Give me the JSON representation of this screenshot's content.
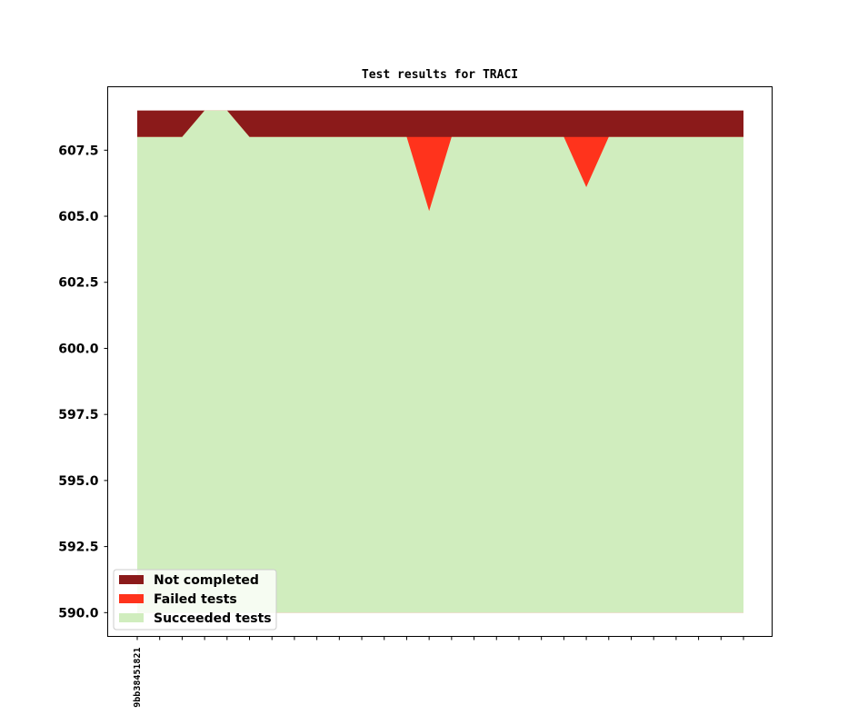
{
  "chart_data": {
    "type": "area",
    "title": "Test results for TRACI",
    "xlabel": "",
    "ylabel": "",
    "x_tick_labels": [
      "9bb38451821"
    ],
    "y_tick_labels": [
      "590.0",
      "592.5",
      "595.0",
      "597.5",
      "600.0",
      "602.5",
      "605.0",
      "607.5"
    ],
    "ylim": [
      589.1,
      609.9
    ],
    "baseline": 590,
    "grid": false,
    "legend_position": "lower-left",
    "n_commits": 28,
    "series": [
      {
        "name": "Succeeded tests",
        "color": "#d0edbe",
        "values": [
          608,
          608,
          608,
          609,
          609,
          608,
          608,
          608,
          608,
          608,
          608,
          608,
          608,
          605.2,
          608,
          608,
          608,
          608,
          608,
          608,
          606.1,
          608,
          608,
          608,
          608,
          608,
          608,
          608
        ]
      },
      {
        "name": "Failed tests",
        "color": "#ff331c",
        "values": [
          608,
          608,
          608,
          609,
          609,
          608,
          608,
          608,
          608,
          608,
          608,
          608,
          608,
          608,
          608,
          608,
          608,
          608,
          608,
          608,
          608,
          608,
          608,
          608,
          608,
          608,
          608,
          608
        ]
      },
      {
        "name": "Not completed",
        "color": "#8b1a1a",
        "values": [
          609,
          609,
          609,
          609,
          609,
          609,
          609,
          609,
          609,
          609,
          609,
          609,
          609,
          609,
          609,
          609,
          609,
          609,
          609,
          609,
          609,
          609,
          609,
          609,
          609,
          609,
          609,
          609
        ]
      }
    ],
    "legend": [
      "Not completed",
      "Failed tests",
      "Succeeded tests"
    ]
  }
}
